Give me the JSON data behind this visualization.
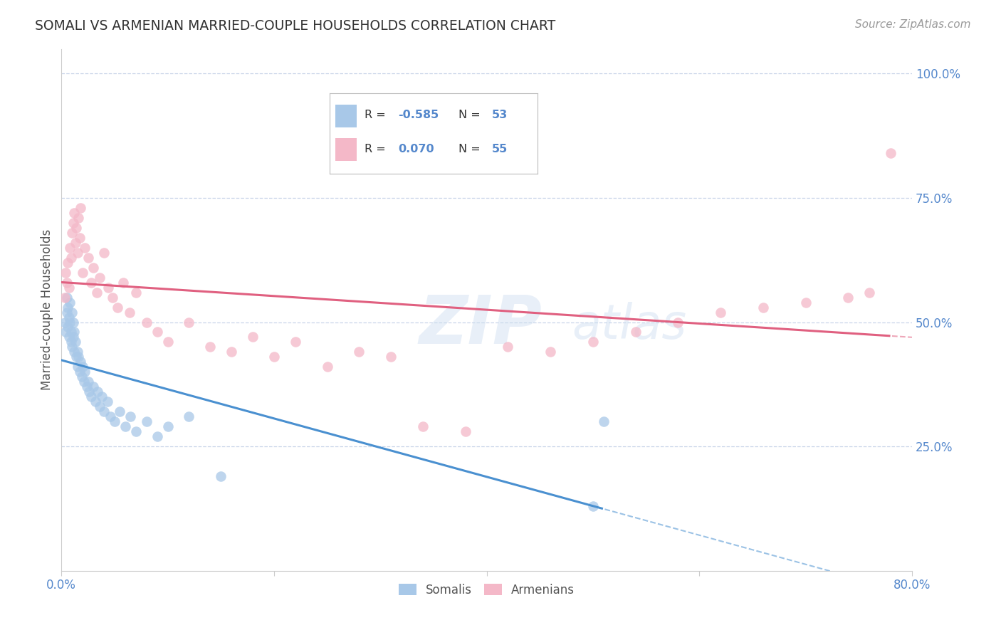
{
  "title": "SOMALI VS ARMENIAN MARRIED-COUPLE HOUSEHOLDS CORRELATION CHART",
  "source": "Source: ZipAtlas.com",
  "ylabel": "Married-couple Households",
  "xlim": [
    0.0,
    0.8
  ],
  "ylim": [
    0.0,
    1.05
  ],
  "somali_R": -0.585,
  "somali_N": 53,
  "armenian_R": 0.07,
  "armenian_N": 55,
  "somali_color": "#a8c8e8",
  "armenian_color": "#f4b8c8",
  "somali_line_color": "#4a90d0",
  "armenian_line_color": "#e06080",
  "background_color": "#ffffff",
  "grid_color": "#c8d4e8",
  "title_color": "#333333",
  "source_color": "#999999",
  "tick_color": "#5588cc",
  "legend_label_somali": "Somalis",
  "legend_label_armenian": "Armenians",
  "somali_x": [
    0.003,
    0.004,
    0.005,
    0.005,
    0.006,
    0.006,
    0.007,
    0.007,
    0.008,
    0.008,
    0.009,
    0.009,
    0.01,
    0.01,
    0.011,
    0.011,
    0.012,
    0.012,
    0.013,
    0.014,
    0.015,
    0.015,
    0.016,
    0.017,
    0.018,
    0.019,
    0.02,
    0.021,
    0.022,
    0.024,
    0.025,
    0.026,
    0.028,
    0.03,
    0.032,
    0.034,
    0.036,
    0.038,
    0.04,
    0.043,
    0.046,
    0.05,
    0.055,
    0.06,
    0.065,
    0.07,
    0.08,
    0.09,
    0.1,
    0.12,
    0.15,
    0.5,
    0.51
  ],
  "somali_y": [
    0.5,
    0.48,
    0.55,
    0.52,
    0.53,
    0.49,
    0.51,
    0.47,
    0.5,
    0.54,
    0.48,
    0.46,
    0.52,
    0.45,
    0.5,
    0.47,
    0.44,
    0.48,
    0.46,
    0.43,
    0.44,
    0.41,
    0.43,
    0.4,
    0.42,
    0.39,
    0.41,
    0.38,
    0.4,
    0.37,
    0.38,
    0.36,
    0.35,
    0.37,
    0.34,
    0.36,
    0.33,
    0.35,
    0.32,
    0.34,
    0.31,
    0.3,
    0.32,
    0.29,
    0.31,
    0.28,
    0.3,
    0.27,
    0.29,
    0.31,
    0.19,
    0.13,
    0.3
  ],
  "armenian_x": [
    0.003,
    0.004,
    0.005,
    0.006,
    0.007,
    0.008,
    0.009,
    0.01,
    0.011,
    0.012,
    0.013,
    0.014,
    0.015,
    0.016,
    0.017,
    0.018,
    0.02,
    0.022,
    0.025,
    0.028,
    0.03,
    0.033,
    0.036,
    0.04,
    0.044,
    0.048,
    0.053,
    0.058,
    0.064,
    0.07,
    0.08,
    0.09,
    0.1,
    0.12,
    0.14,
    0.16,
    0.18,
    0.2,
    0.22,
    0.25,
    0.28,
    0.31,
    0.34,
    0.38,
    0.42,
    0.46,
    0.5,
    0.54,
    0.58,
    0.62,
    0.66,
    0.7,
    0.74,
    0.76,
    0.78
  ],
  "armenian_y": [
    0.55,
    0.6,
    0.58,
    0.62,
    0.57,
    0.65,
    0.63,
    0.68,
    0.7,
    0.72,
    0.66,
    0.69,
    0.64,
    0.71,
    0.67,
    0.73,
    0.6,
    0.65,
    0.63,
    0.58,
    0.61,
    0.56,
    0.59,
    0.64,
    0.57,
    0.55,
    0.53,
    0.58,
    0.52,
    0.56,
    0.5,
    0.48,
    0.46,
    0.5,
    0.45,
    0.44,
    0.47,
    0.43,
    0.46,
    0.41,
    0.44,
    0.43,
    0.29,
    0.28,
    0.45,
    0.44,
    0.46,
    0.48,
    0.5,
    0.52,
    0.53,
    0.54,
    0.55,
    0.56,
    0.84
  ]
}
